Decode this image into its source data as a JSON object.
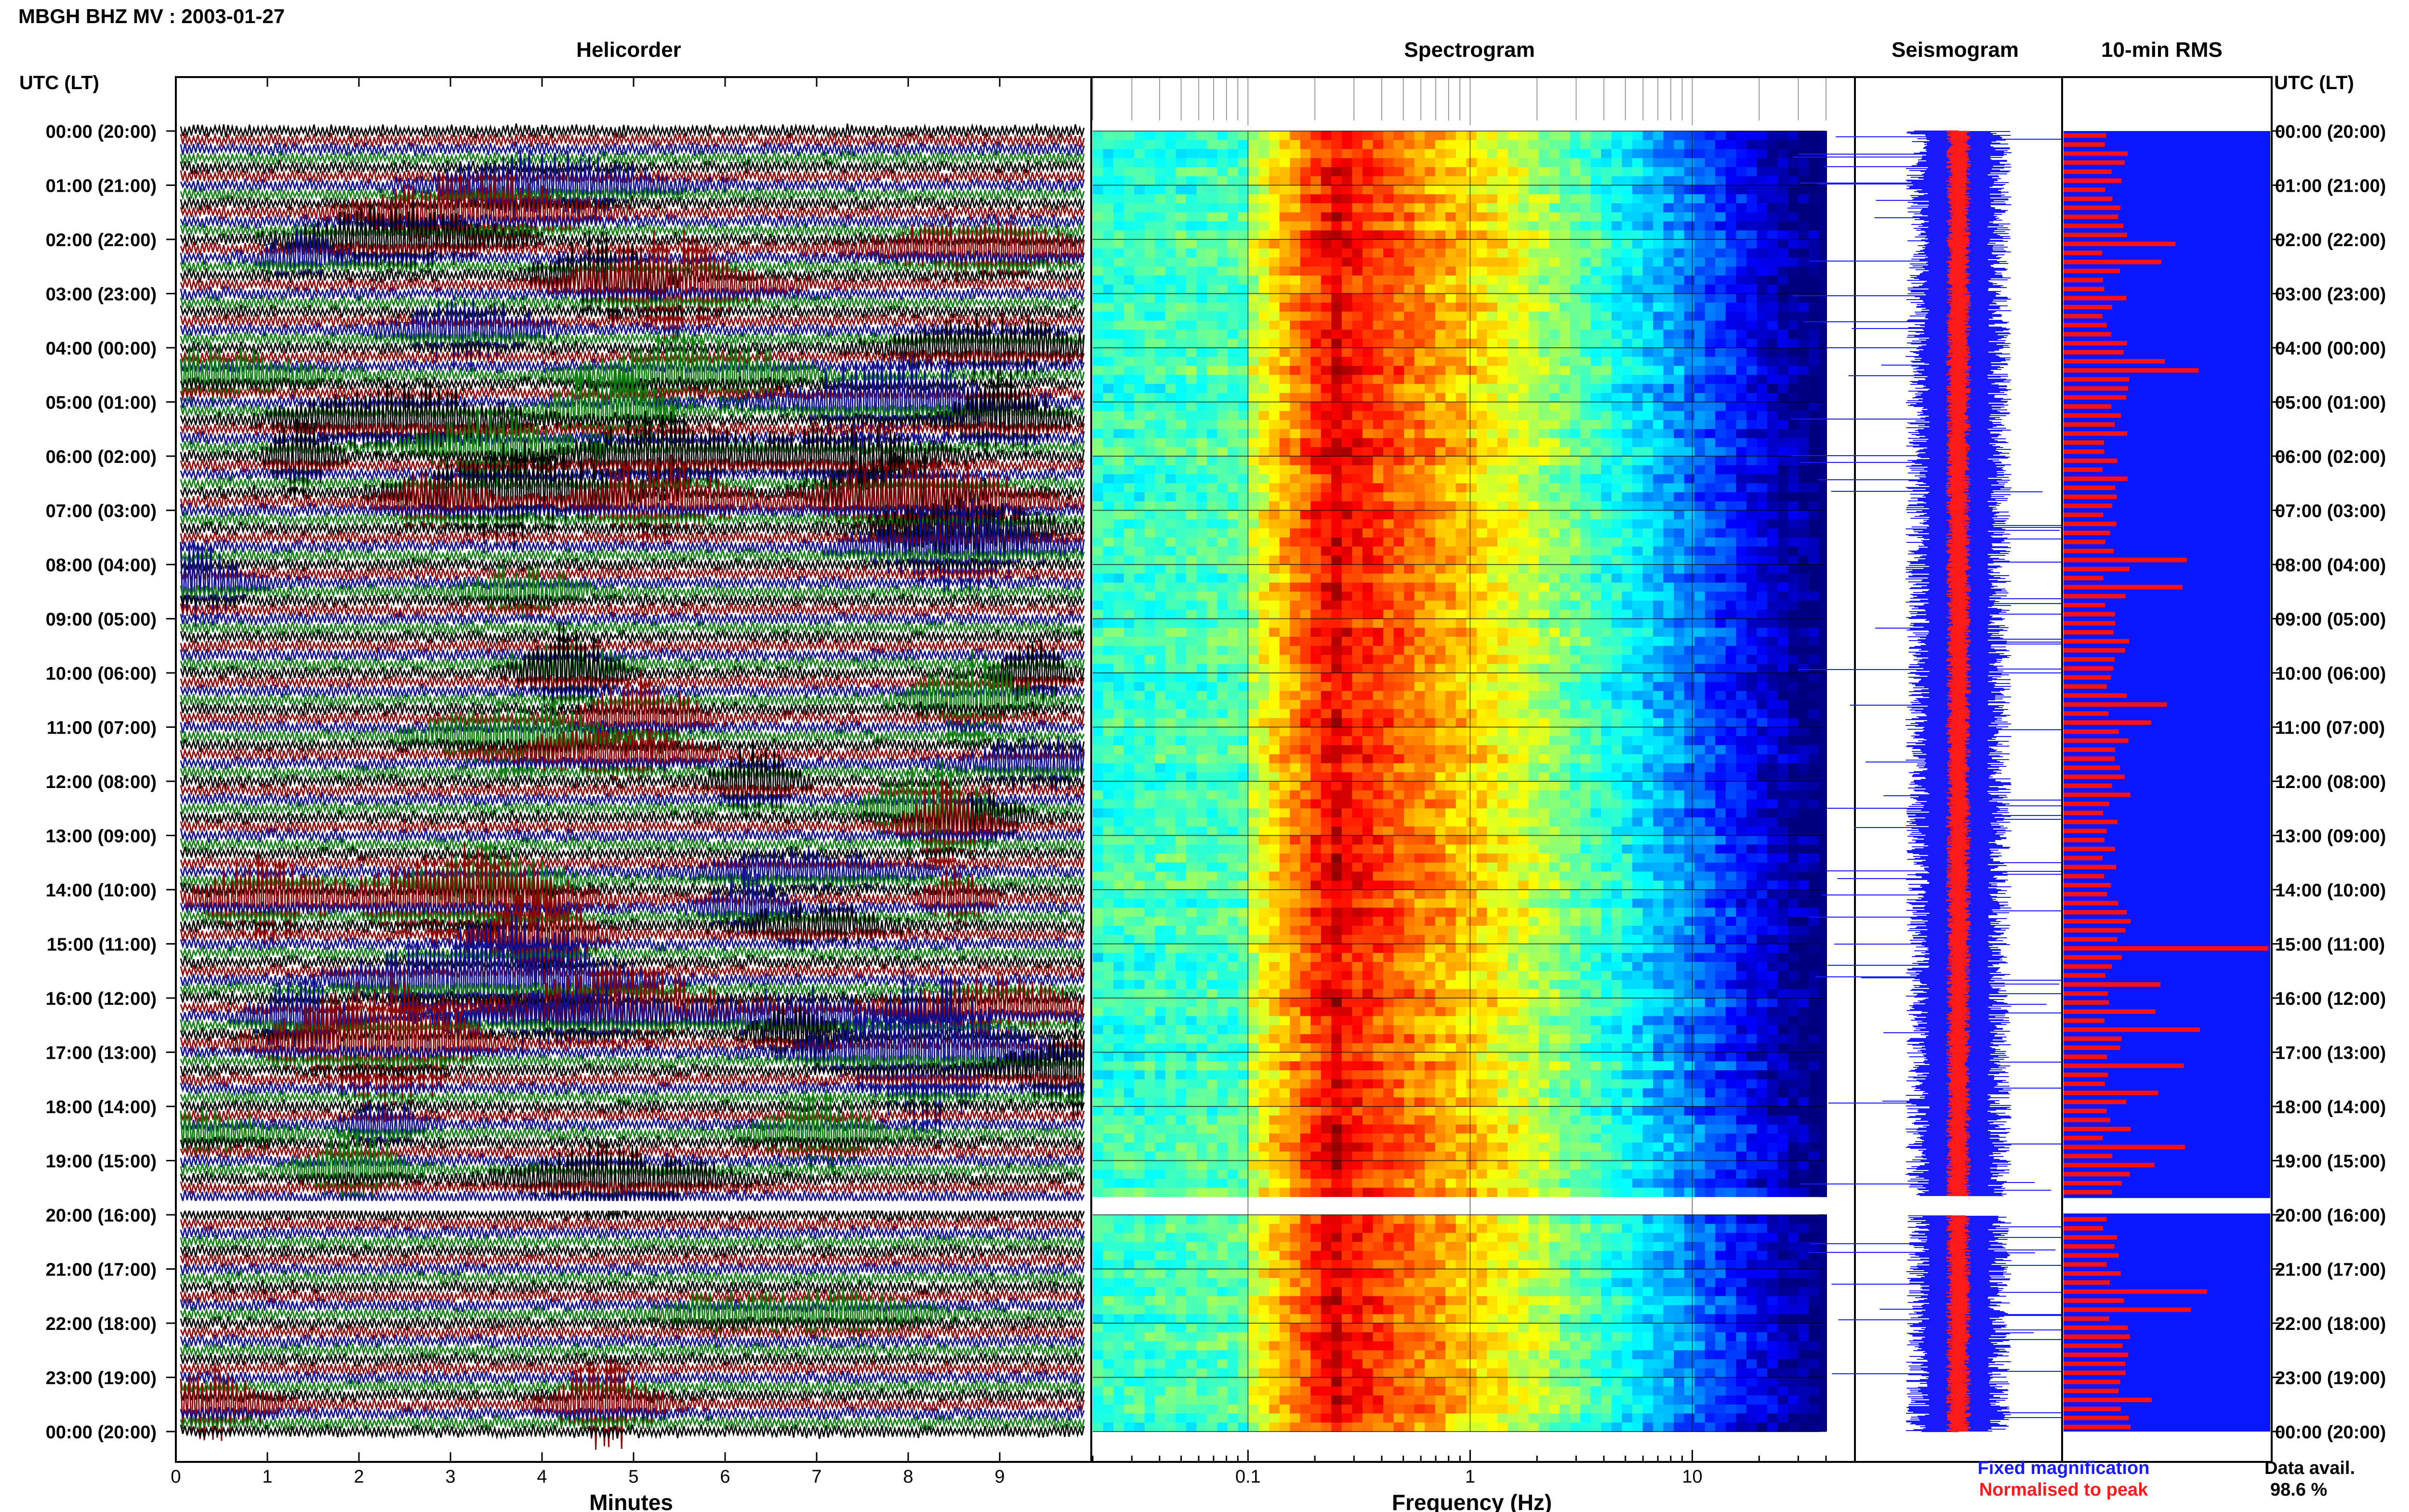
{
  "header": {
    "title": "MBGH BHZ MV : 2003-01-27"
  },
  "panels": {
    "helicorder": "Helicorder",
    "spectrogram": "Spectrogram",
    "seismogram": "Seismogram",
    "rms": "10-min RMS"
  },
  "axis": {
    "time_label_left": "UTC (LT)",
    "time_label_right": "UTC (LT)",
    "time_ticks": [
      "00:00 (20:00)",
      "01:00 (21:00)",
      "02:00 (22:00)",
      "03:00 (23:00)",
      "04:00 (00:00)",
      "05:00 (01:00)",
      "06:00 (02:00)",
      "07:00 (03:00)",
      "08:00 (04:00)",
      "09:00 (05:00)",
      "10:00 (06:00)",
      "11:00 (07:00)",
      "12:00 (08:00)",
      "13:00 (09:00)",
      "14:00 (10:00)",
      "15:00 (11:00)",
      "16:00 (12:00)",
      "17:00 (13:00)",
      "18:00 (14:00)",
      "19:00 (15:00)",
      "20:00 (16:00)",
      "21:00 (17:00)",
      "22:00 (18:00)",
      "23:00 (19:00)",
      "00:00 (20:00)"
    ],
    "minutes_label": "Minutes",
    "minutes_ticks": [
      "0",
      "1",
      "2",
      "3",
      "4",
      "5",
      "6",
      "7",
      "8",
      "9"
    ],
    "frequency_label": "Frequency (Hz)",
    "frequency_ticks": [
      "0.1",
      "1",
      "10"
    ]
  },
  "legend": {
    "fixed": "Fixed magnification",
    "normalised": "Normalised to peak",
    "fixed_color": "#1a1aff",
    "normalised_color": "#ff1a1a"
  },
  "availability": {
    "label": "Data avail.",
    "value": "98.6 %"
  },
  "chart_data": {
    "type": "heatmap",
    "station": "MBGH BHZ MV",
    "date": "2003-01-27",
    "helicorder_colors": [
      "#000000",
      "#8b0000",
      "#0a0a8c",
      "#0a7a0a"
    ],
    "helicorder_minutes_range": [
      0,
      10
    ],
    "helicorder_traces_per_hour": 6,
    "frequency_range_hz": [
      0.02,
      40
    ],
    "frequency_scale": "log",
    "spectrogram_colormap": "jet",
    "data_gap_utc": "19:50",
    "rms_bar_color": "#ff1010",
    "rms_background_color": "#0a16ff",
    "data_availability_percent": 98.6
  }
}
